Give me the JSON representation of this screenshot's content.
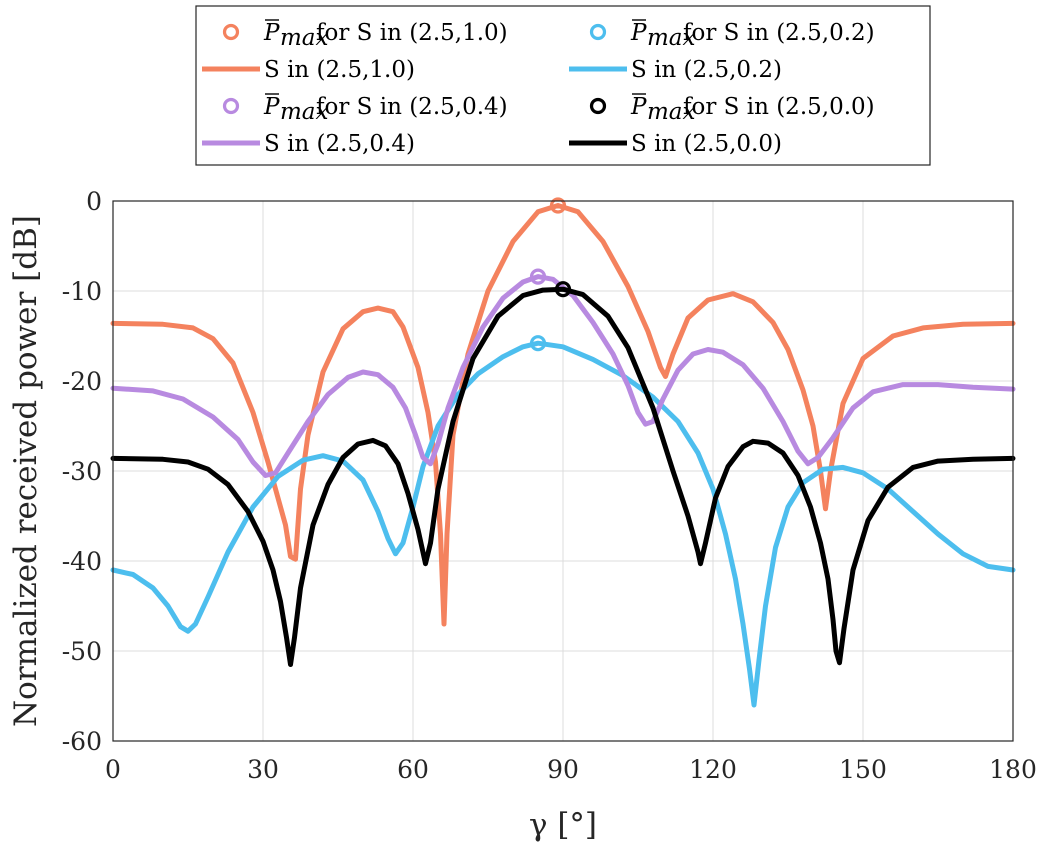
{
  "chart_data": {
    "type": "line",
    "xlabel": "γ [°]",
    "ylabel": "Normalized received power [dB]",
    "xlim": [
      0,
      180
    ],
    "ylim": [
      -60,
      0
    ],
    "xticks": [
      0,
      30,
      60,
      90,
      120,
      150,
      180
    ],
    "yticks": [
      0,
      -10,
      -20,
      -30,
      -40,
      -50,
      -60
    ],
    "grid": true,
    "legend_position": "top-center",
    "series": [
      {
        "name": "S in (2.5,1.0)",
        "marker_label": "for S in (2.5,1.0)",
        "color": "#F4825E",
        "peak": {
          "x": 89,
          "y": -0.5
        },
        "points": [
          [
            0,
            -13.6
          ],
          [
            10,
            -13.7
          ],
          [
            16,
            -14.1
          ],
          [
            20,
            -15.3
          ],
          [
            24,
            -18
          ],
          [
            28,
            -23.5
          ],
          [
            31,
            -29
          ],
          [
            33,
            -33
          ],
          [
            34.5,
            -36
          ],
          [
            35.5,
            -39.5
          ],
          [
            36.5,
            -39.8
          ],
          [
            37.5,
            -32
          ],
          [
            39,
            -26
          ],
          [
            42,
            -19
          ],
          [
            46,
            -14.2
          ],
          [
            50,
            -12.3
          ],
          [
            53,
            -11.9
          ],
          [
            56,
            -12.3
          ],
          [
            58,
            -14
          ],
          [
            61,
            -18.5
          ],
          [
            63,
            -23.5
          ],
          [
            64.5,
            -29
          ],
          [
            65.5,
            -37
          ],
          [
            66.2,
            -47
          ],
          [
            66.8,
            -37
          ],
          [
            68,
            -26
          ],
          [
            71,
            -17
          ],
          [
            75,
            -10
          ],
          [
            80,
            -4.5
          ],
          [
            85,
            -1.2
          ],
          [
            89,
            -0.5
          ],
          [
            93,
            -1.2
          ],
          [
            98,
            -4.5
          ],
          [
            103,
            -9.5
          ],
          [
            107,
            -14.5
          ],
          [
            109.5,
            -18.5
          ],
          [
            110.5,
            -19.5
          ],
          [
            112,
            -17
          ],
          [
            115,
            -13
          ],
          [
            119,
            -11
          ],
          [
            124,
            -10.3
          ],
          [
            128,
            -11.2
          ],
          [
            132,
            -13.5
          ],
          [
            135,
            -16.5
          ],
          [
            138,
            -21
          ],
          [
            140,
            -25
          ],
          [
            141.5,
            -30
          ],
          [
            142.5,
            -34.2
          ],
          [
            143.5,
            -30
          ],
          [
            146,
            -22.5
          ],
          [
            150,
            -17.5
          ],
          [
            156,
            -15
          ],
          [
            162,
            -14.1
          ],
          [
            170,
            -13.7
          ],
          [
            180,
            -13.6
          ]
        ]
      },
      {
        "name": "S in (2.5,0.2)",
        "marker_label": "for S in (2.5,0.2)",
        "color": "#4DBEEE",
        "peak": {
          "x": 85,
          "y": -15.8
        },
        "points": [
          [
            0,
            -41
          ],
          [
            4,
            -41.5
          ],
          [
            8,
            -43
          ],
          [
            11,
            -45
          ],
          [
            13.5,
            -47.3
          ],
          [
            15,
            -47.8
          ],
          [
            16.5,
            -47
          ],
          [
            19,
            -44
          ],
          [
            23,
            -39
          ],
          [
            28,
            -34
          ],
          [
            33,
            -30.6
          ],
          [
            38,
            -28.8
          ],
          [
            42,
            -28.3
          ],
          [
            46,
            -28.9
          ],
          [
            50,
            -31
          ],
          [
            53,
            -34.5
          ],
          [
            55,
            -37.5
          ],
          [
            56.5,
            -39.2
          ],
          [
            58,
            -38
          ],
          [
            60,
            -34
          ],
          [
            62,
            -29.5
          ],
          [
            65,
            -25
          ],
          [
            69,
            -21.5
          ],
          [
            73,
            -19.2
          ],
          [
            78,
            -17.3
          ],
          [
            82,
            -16.2
          ],
          [
            85,
            -15.8
          ],
          [
            90,
            -16.2
          ],
          [
            96,
            -17.6
          ],
          [
            102,
            -19.4
          ],
          [
            108,
            -21.8
          ],
          [
            113,
            -24.5
          ],
          [
            117,
            -28
          ],
          [
            120,
            -32
          ],
          [
            122.5,
            -37
          ],
          [
            124.5,
            -42
          ],
          [
            126,
            -47
          ],
          [
            127.3,
            -52
          ],
          [
            128.2,
            -56
          ],
          [
            129.2,
            -51
          ],
          [
            130.5,
            -45
          ],
          [
            132.5,
            -38.5
          ],
          [
            135,
            -34
          ],
          [
            138,
            -31.3
          ],
          [
            142,
            -29.8
          ],
          [
            146,
            -29.6
          ],
          [
            150,
            -30.2
          ],
          [
            155,
            -32
          ],
          [
            160,
            -34.5
          ],
          [
            165,
            -37
          ],
          [
            170,
            -39.2
          ],
          [
            175,
            -40.6
          ],
          [
            180,
            -41
          ]
        ]
      },
      {
        "name": "S in (2.5,0.4)",
        "marker_label": "for S in (2.5,0.4)",
        "color": "#B88AE0",
        "peak": {
          "x": 85,
          "y": -8.4
        },
        "points": [
          [
            0,
            -20.8
          ],
          [
            8,
            -21.1
          ],
          [
            14,
            -22
          ],
          [
            20,
            -24
          ],
          [
            25,
            -26.5
          ],
          [
            28,
            -29
          ],
          [
            30.5,
            -30.5
          ],
          [
            32.5,
            -30.2
          ],
          [
            35,
            -28
          ],
          [
            39,
            -24.5
          ],
          [
            43,
            -21.5
          ],
          [
            47,
            -19.6
          ],
          [
            50,
            -19
          ],
          [
            53,
            -19.3
          ],
          [
            56,
            -20.7
          ],
          [
            58.5,
            -23
          ],
          [
            60.5,
            -26
          ],
          [
            62,
            -28.5
          ],
          [
            63.5,
            -29.2
          ],
          [
            65,
            -27
          ],
          [
            67,
            -23
          ],
          [
            70,
            -18.5
          ],
          [
            74,
            -14
          ],
          [
            78,
            -10.8
          ],
          [
            82,
            -9
          ],
          [
            85,
            -8.4
          ],
          [
            88,
            -8.7
          ],
          [
            92,
            -10.5
          ],
          [
            96,
            -13.5
          ],
          [
            100,
            -17
          ],
          [
            103,
            -20.5
          ],
          [
            105,
            -23.5
          ],
          [
            106.5,
            -24.8
          ],
          [
            108,
            -24.5
          ],
          [
            110,
            -22
          ],
          [
            113,
            -18.8
          ],
          [
            116,
            -17
          ],
          [
            119,
            -16.5
          ],
          [
            122,
            -16.8
          ],
          [
            126,
            -18.2
          ],
          [
            130,
            -20.8
          ],
          [
            134,
            -24.5
          ],
          [
            137,
            -27.8
          ],
          [
            139,
            -29.2
          ],
          [
            141,
            -28.5
          ],
          [
            144,
            -26.3
          ],
          [
            148,
            -23
          ],
          [
            152,
            -21.2
          ],
          [
            158,
            -20.4
          ],
          [
            165,
            -20.4
          ],
          [
            172,
            -20.7
          ],
          [
            180,
            -20.9
          ]
        ]
      },
      {
        "name": "S in (2.5,0.0)",
        "marker_label": "for S in (2.5,0.0)",
        "color": "#000000",
        "peak": {
          "x": 90,
          "y": -9.8
        },
        "points": [
          [
            0,
            -28.6
          ],
          [
            10,
            -28.7
          ],
          [
            15,
            -29
          ],
          [
            19,
            -29.8
          ],
          [
            23,
            -31.5
          ],
          [
            27,
            -34.5
          ],
          [
            30,
            -37.8
          ],
          [
            32,
            -41
          ],
          [
            33.5,
            -44.5
          ],
          [
            34.7,
            -48.5
          ],
          [
            35.5,
            -51.5
          ],
          [
            36.3,
            -48.5
          ],
          [
            37.5,
            -43
          ],
          [
            40,
            -36
          ],
          [
            43,
            -31.5
          ],
          [
            46,
            -28.5
          ],
          [
            49,
            -27
          ],
          [
            52,
            -26.6
          ],
          [
            54.5,
            -27.2
          ],
          [
            57,
            -29.2
          ],
          [
            59,
            -32.5
          ],
          [
            61,
            -36.5
          ],
          [
            62.5,
            -40.3
          ],
          [
            63.5,
            -38
          ],
          [
            65,
            -32
          ],
          [
            68,
            -24.5
          ],
          [
            72,
            -17.5
          ],
          [
            77,
            -12.8
          ],
          [
            82,
            -10.5
          ],
          [
            86,
            -9.9
          ],
          [
            90,
            -9.8
          ],
          [
            94,
            -10.4
          ],
          [
            99,
            -12.8
          ],
          [
            103,
            -16.3
          ],
          [
            108,
            -23
          ],
          [
            112,
            -30
          ],
          [
            115,
            -35
          ],
          [
            117,
            -39
          ],
          [
            117.5,
            -40.3
          ],
          [
            118.5,
            -38
          ],
          [
            120.5,
            -33
          ],
          [
            123,
            -29.5
          ],
          [
            126,
            -27.3
          ],
          [
            128,
            -26.7
          ],
          [
            131,
            -26.9
          ],
          [
            134,
            -28
          ],
          [
            137,
            -30.5
          ],
          [
            139.5,
            -34
          ],
          [
            141.5,
            -38
          ],
          [
            143,
            -42
          ],
          [
            144,
            -46.5
          ],
          [
            144.6,
            -50
          ],
          [
            145.3,
            -51.3
          ],
          [
            146.2,
            -47.5
          ],
          [
            148,
            -41
          ],
          [
            151,
            -35.5
          ],
          [
            155,
            -31.8
          ],
          [
            160,
            -29.6
          ],
          [
            165,
            -28.9
          ],
          [
            172,
            -28.7
          ],
          [
            180,
            -28.6
          ]
        ]
      }
    ]
  },
  "legend": {
    "entries": [
      {
        "kind": "marker",
        "series": 0,
        "label": "for S in (2.5,1.0)"
      },
      {
        "kind": "marker",
        "series": 1,
        "label": "for S in (2.5,0.2)"
      },
      {
        "kind": "line",
        "series": 0,
        "label": "S in (2.5,1.0)"
      },
      {
        "kind": "line",
        "series": 1,
        "label": "S in (2.5,0.2)"
      },
      {
        "kind": "marker",
        "series": 2,
        "label": "for S in (2.5,0.4)"
      },
      {
        "kind": "marker",
        "series": 3,
        "label": "for S in (2.5,0.0)"
      },
      {
        "kind": "line",
        "series": 2,
        "label": "S in (2.5,0.4)"
      },
      {
        "kind": "line",
        "series": 3,
        "label": "S in (2.5,0.0)"
      }
    ],
    "pmax_symbol": "P",
    "pmax_subscript": "max"
  }
}
